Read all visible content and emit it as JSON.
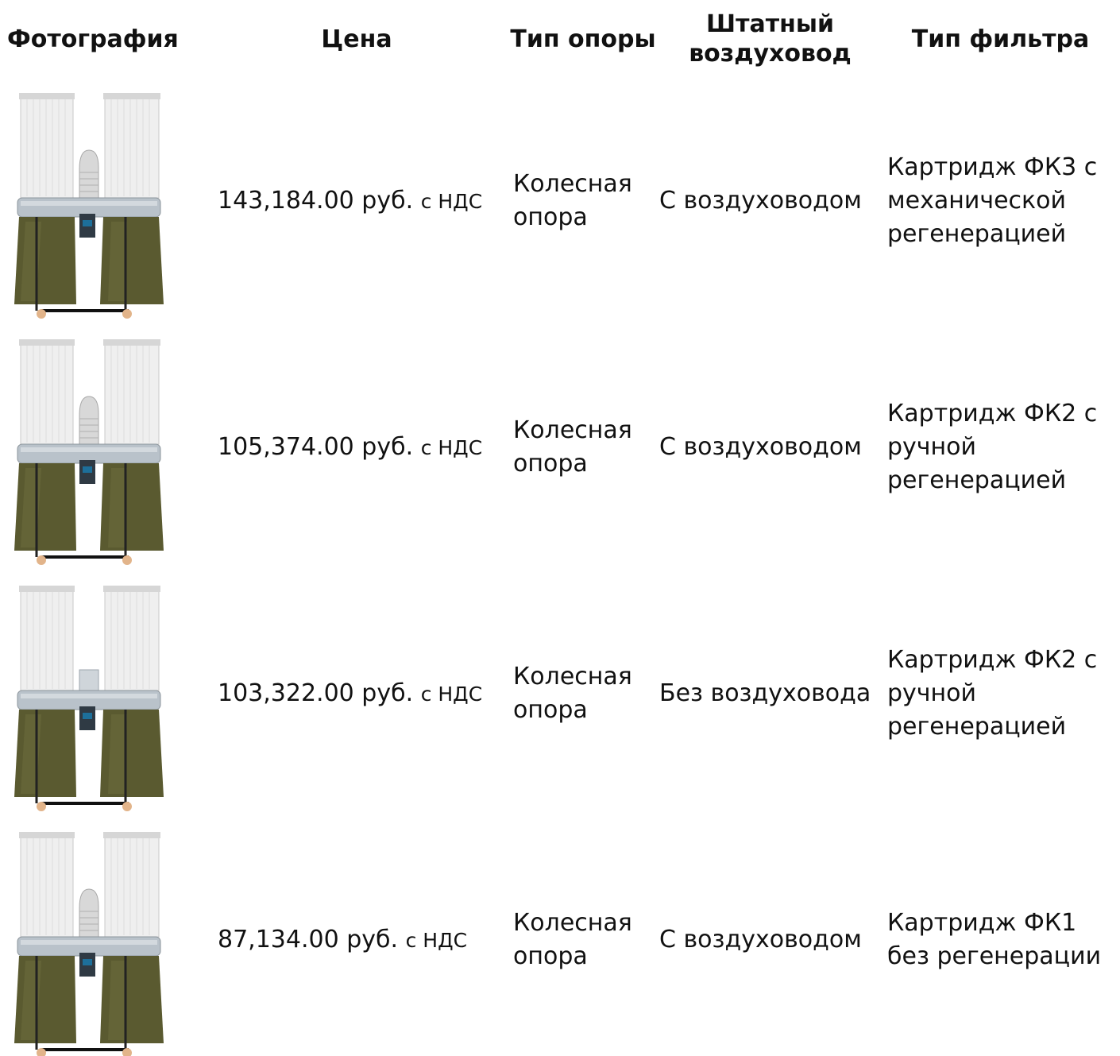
{
  "headers": {
    "photo": "Фотография",
    "price": "Цена",
    "support": "Тип опоры",
    "duct": "Штатный воздуховод",
    "filter": "Тип фильтра"
  },
  "rows": [
    {
      "price": "143,184.00 руб.",
      "vat": "с НДС",
      "support": "Колесная опора",
      "duct": "С воздуховодом",
      "filter": "Картридж ФК3 с механической регенерацией",
      "photo_has_hose": true
    },
    {
      "price": "105,374.00 руб.",
      "vat": "с НДС",
      "support": "Колесная опора",
      "duct": "С воздуховодом",
      "filter": "Картридж ФК2 с ручной регенерацией",
      "photo_has_hose": true
    },
    {
      "price": "103,322.00 руб.",
      "vat": "с НДС",
      "support": "Колесная опора",
      "duct": "Без воздуховода",
      "filter": "Картридж ФК2 с ручной регенерацией",
      "photo_has_hose": false
    },
    {
      "price": "87,134.00 руб.",
      "vat": "с НДС",
      "support": "Колесная опора",
      "duct": "С воздуховодом",
      "filter": "Картридж ФК1 без регенерации",
      "photo_has_hose": true
    }
  ],
  "colors": {
    "filter_cartridge": "#ececec",
    "frame_metal": "#b9c2ca",
    "bag_fabric": "#5a5a30",
    "wheel": "#e2b48a"
  }
}
